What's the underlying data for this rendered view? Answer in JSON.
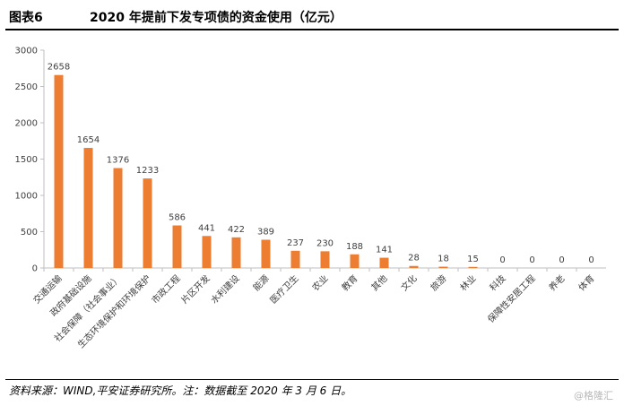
{
  "header": {
    "figure_label": "图表6",
    "title": "2020 年提前下发专项债的资金使用（亿元）"
  },
  "footer": {
    "source": "资料来源：WIND,平安证券研究所。注：数据截至 2020 年 3 月 6 日。",
    "watermark": "@格隆汇"
  },
  "colors": {
    "bar": "#ED7D31",
    "axis": "#BFBFBF",
    "text": "#404040"
  },
  "chart_data": {
    "type": "bar",
    "title": "2020 年提前下发专项债的资金使用（亿元）",
    "categories": [
      "交通运输",
      "政府基础设施",
      "社会保障（社会事业）",
      "生态环境保护和环境保护",
      "市政工程",
      "片区开发",
      "水利建设",
      "能源",
      "医疗卫生",
      "农业",
      "教育",
      "其他",
      "文化",
      "旅游",
      "林业",
      "科技",
      "保障性安居工程",
      "养老",
      "体育"
    ],
    "values": [
      2658,
      1654,
      1376,
      1233,
      586,
      441,
      422,
      389,
      237,
      230,
      188,
      141,
      28,
      18,
      15,
      0,
      0,
      0,
      0
    ],
    "ylim": [
      0,
      3000
    ],
    "yticks": [
      0,
      500,
      1000,
      1500,
      2000,
      2500,
      3000
    ],
    "xlabel": "",
    "ylabel": "",
    "grid": false,
    "legend": "none",
    "data_labels": true
  }
}
